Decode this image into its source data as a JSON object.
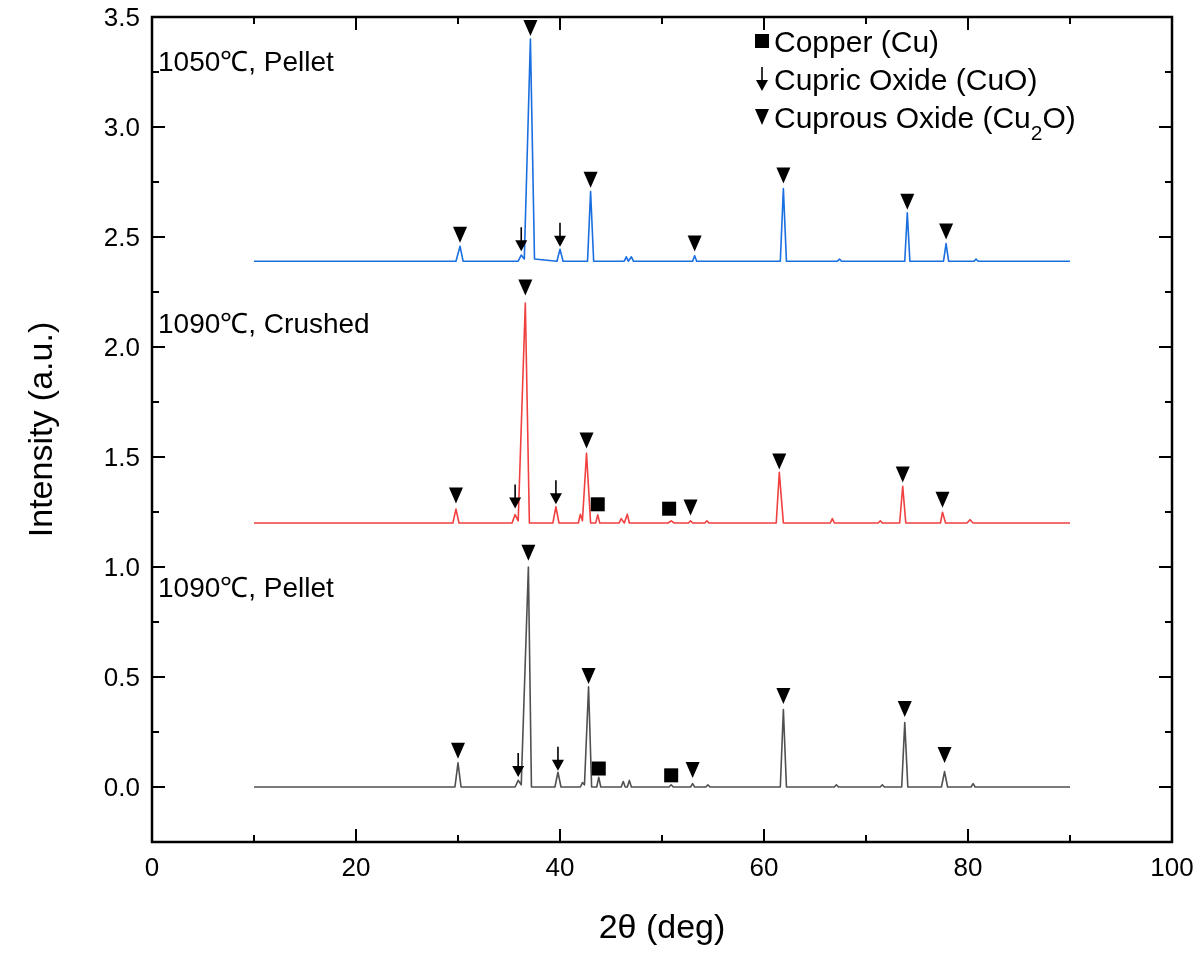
{
  "chart_data": {
    "type": "line",
    "xlabel": "2θ (deg)",
    "ylabel": "Intensity (a.u.)",
    "xlim": [
      0,
      100
    ],
    "ylim": [
      -0.25,
      3.5
    ],
    "xticks": [
      0,
      {
        "value": 10,
        "label": null
      },
      20,
      {
        "value": 30,
        "label": null
      },
      40,
      {
        "value": 50,
        "label": null
      },
      60,
      {
        "value": 70,
        "label": null
      },
      80,
      {
        "value": 90,
        "label": null
      },
      100
    ],
    "yticks": [
      {
        "value": -0.25,
        "label": null
      },
      {
        "value": 0,
        "label": "0.0"
      },
      {
        "value": 0.25,
        "label": null
      },
      {
        "value": 0.5,
        "label": "0.5"
      },
      {
        "value": 0.75,
        "label": null
      },
      {
        "value": 1,
        "label": "1.0"
      },
      {
        "value": 1.25,
        "label": null
      },
      {
        "value": 1.5,
        "label": "1.5"
      },
      {
        "value": 1.75,
        "label": null
      },
      {
        "value": 2,
        "label": "2.0"
      },
      {
        "value": 2.25,
        "label": null
      },
      {
        "value": 2.5,
        "label": "2.5"
      },
      {
        "value": 2.75,
        "label": null
      },
      {
        "value": 3,
        "label": "3.0"
      },
      {
        "value": 3.25,
        "label": null
      },
      {
        "value": 3.5,
        "label": "3.5"
      }
    ],
    "grid": false,
    "legend": "top right",
    "annotations": [
      "1050℃, Pellet",
      "1090℃, Crushed",
      "1090℃, Pellet"
    ],
    "series": [
      {
        "color": "#1a6fe0",
        "marker": "none",
        "x": [
          10,
          29.8,
          30.2,
          30.5,
          35.9,
          36.2,
          36.5,
          37.1,
          37.5,
          39.7,
          40.0,
          40.3,
          42.7,
          43.0,
          43.3,
          46.3,
          46.5,
          46.7,
          47.0,
          47.2,
          53.0,
          53.2,
          53.4,
          61.6,
          61.9,
          62.2,
          67.2,
          67.4,
          67.6,
          73.8,
          74.05,
          74.3,
          77.6,
          77.85,
          78.1,
          80.6,
          80.8,
          81.0,
          90
        ],
        "values": [
          2.39,
          2.39,
          2.458,
          2.39,
          2.39,
          2.418,
          2.4,
          3.4,
          2.4,
          2.39,
          2.444,
          2.39,
          2.39,
          2.707,
          2.39,
          2.39,
          2.41,
          2.39,
          2.41,
          2.39,
          2.39,
          2.415,
          2.39,
          2.39,
          2.72,
          2.39,
          2.39,
          2.4,
          2.39,
          2.39,
          2.61,
          2.39,
          2.39,
          2.47,
          2.39,
          2.39,
          2.4,
          2.39,
          2.39
        ]
      },
      {
        "color": "#f04040",
        "marker": "none",
        "x": [
          10,
          29.5,
          29.8,
          30.1,
          35.3,
          35.6,
          35.9,
          36.6,
          37.0,
          39.3,
          39.6,
          39.9,
          41.8,
          42.0,
          42.2,
          42.6,
          43.0,
          43.5,
          43.7,
          43.9,
          45.8,
          46.0,
          46.3,
          46.6,
          46.8,
          50.6,
          50.9,
          51.2,
          52.6,
          52.8,
          53.0,
          54.2,
          54.4,
          54.6,
          61.2,
          61.5,
          61.9,
          66.5,
          66.7,
          66.9,
          71.2,
          71.4,
          71.6,
          73.3,
          73.6,
          73.9,
          77.3,
          77.5,
          77.8,
          79.9,
          80.2,
          80.5,
          90
        ],
        "values": [
          1.2,
          1.2,
          1.263,
          1.2,
          1.2,
          1.238,
          1.21,
          2.2,
          1.2,
          1.2,
          1.274,
          1.2,
          1.2,
          1.24,
          1.21,
          1.517,
          1.2,
          1.2,
          1.237,
          1.2,
          1.2,
          1.22,
          1.2,
          1.24,
          1.2,
          1.2,
          1.21,
          1.2,
          1.2,
          1.21,
          1.2,
          1.2,
          1.21,
          1.2,
          1.2,
          1.43,
          1.2,
          1.2,
          1.22,
          1.2,
          1.2,
          1.21,
          1.2,
          1.2,
          1.367,
          1.2,
          1.2,
          1.249,
          1.2,
          1.2,
          1.215,
          1.2,
          1.2
        ]
      },
      {
        "color": "#505050",
        "marker": "none",
        "x": [
          10,
          29.7,
          30.0,
          30.3,
          35.6,
          35.9,
          36.2,
          36.9,
          37.2,
          39.5,
          39.8,
          40.1,
          42.0,
          42.2,
          42.4,
          42.8,
          43.1,
          43.6,
          43.8,
          44.0,
          46.0,
          46.2,
          46.4,
          46.6,
          46.8,
          47.0,
          50.7,
          50.9,
          51.1,
          52.8,
          53.0,
          53.2,
          54.3,
          54.5,
          54.7,
          61.6,
          61.9,
          62.2,
          66.9,
          67.1,
          67.3,
          71.4,
          71.6,
          71.8,
          73.5,
          73.8,
          74.1,
          77.4,
          77.7,
          78.0,
          80.3,
          80.5,
          80.7,
          90
        ],
        "values": [
          0,
          0,
          0.11,
          0,
          0,
          0.03,
          0.01,
          1.0,
          0,
          0,
          0.067,
          0,
          0,
          0.02,
          0.01,
          0.455,
          0,
          0,
          0.044,
          0,
          0,
          0.025,
          0,
          0,
          0.03,
          0,
          0,
          0.01,
          0,
          0,
          0.015,
          0,
          0,
          0.01,
          0,
          0,
          0.352,
          0,
          0,
          0.01,
          0,
          0,
          0.01,
          0,
          0,
          0.293,
          0,
          0,
          0.07,
          0,
          0,
          0.015,
          0,
          0
        ]
      },
      {
        "name": "Copper (Cu)",
        "type": "scatter",
        "color": "#000000",
        "marker": "square",
        "x": [
          43.7,
          50.7,
          43.8,
          50.9
        ],
        "values": [
          1.285,
          1.265,
          0.084,
          0.053
        ]
      },
      {
        "name": "Cupric Oxide (CuO)",
        "type": "scatter",
        "color": "#000000",
        "x": [
          36.2,
          40.0,
          35.6,
          39.6,
          35.9,
          39.8
        ],
        "values": [
          2.49,
          2.51,
          1.32,
          1.34,
          0.1,
          0.128
        ]
      },
      {
        "name": "Cuprous Oxide (Cu$_{2}$O)",
        "type": "scatter",
        "color": "#000000",
        "marker": "triangle",
        "x": [
          30.2,
          37.1,
          43.0,
          53.2,
          61.9,
          74.05,
          77.85,
          29.8,
          36.6,
          42.6,
          52.8,
          61.5,
          73.6,
          77.5,
          30.0,
          36.9,
          42.8,
          53.0,
          61.9,
          73.8,
          77.7
        ],
        "values": [
          2.51,
          3.45,
          2.76,
          2.47,
          2.78,
          2.66,
          2.525,
          1.325,
          2.27,
          1.575,
          1.27,
          1.48,
          1.42,
          1.306,
          0.165,
          1.065,
          0.505,
          0.077,
          0.414,
          0.355,
          0.145
        ]
      }
    ]
  }
}
